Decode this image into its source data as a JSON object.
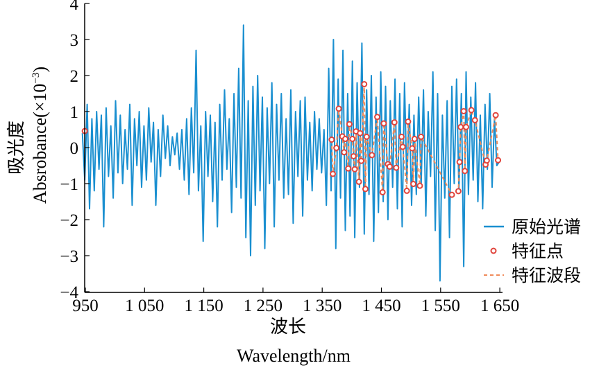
{
  "chart_data": {
    "type": "line",
    "xlabel_cn": "波长",
    "xlabel": "Wavelength/nm",
    "ylabel_cn": "吸光度",
    "ylabel": "Absrobance(×10",
    "ylabel_exp": "−3",
    "ylabel_close": ")",
    "xlim": [
      942,
      1655
    ],
    "ylim": [
      -4,
      4
    ],
    "xticks": [
      950,
      1050,
      1150,
      1250,
      1350,
      1450,
      1550,
      1650
    ],
    "xtick_labels": [
      "950",
      "1 050",
      "1 150",
      "1 250",
      "1 350",
      "1 450",
      "1 550",
      "1 650"
    ],
    "yticks": [
      -4,
      -3,
      -2,
      -1,
      0,
      1,
      2,
      3,
      4
    ],
    "ytick_labels": [
      "−4",
      "−3",
      "−2",
      "−1",
      "0",
      "1",
      "2",
      "3",
      "4"
    ],
    "grid": false,
    "legend_position": "bottom-right",
    "legend": [
      "原始光谱",
      "特征点",
      "特征波段"
    ],
    "colors": {
      "spectrum": "#1a8fd0",
      "points": "#e0443c",
      "bands": "#f08a5a"
    },
    "series": [
      {
        "name": "原始光谱",
        "x_start": 945,
        "x_step": 4,
        "values": [
          0.4,
          -0.9,
          1.2,
          -1.7,
          0.8,
          -1.2,
          1.0,
          -0.6,
          0.9,
          -2.2,
          1.1,
          -0.8,
          0.6,
          -1.4,
          1.3,
          -0.7,
          0.9,
          -1.0,
          0.5,
          -0.6,
          1.2,
          -1.6,
          0.8,
          -0.5,
          1.0,
          -1.1,
          0.6,
          -0.9,
          1.1,
          -0.4,
          0.7,
          -1.6,
          0.5,
          -0.8,
          0.9,
          -0.3,
          0.6,
          -0.5,
          0.3,
          -0.2,
          0.4,
          -0.6,
          0.5,
          -0.9,
          0.8,
          -1.3,
          1.1,
          -0.7,
          2.7,
          -1.2,
          0.6,
          -2.6,
          1.0,
          -0.8,
          0.9,
          -1.5,
          0.7,
          -2.2,
          1.2,
          -0.9,
          1.6,
          -0.6,
          0.8,
          -1.8,
          1.5,
          -1.1,
          2.2,
          -1.4,
          3.4,
          -2.5,
          1.3,
          -3.0,
          1.7,
          -1.6,
          2.0,
          -1.2,
          1.4,
          -2.8,
          1.1,
          -1.0,
          1.8,
          -2.2,
          1.2,
          -0.9,
          1.5,
          -1.4,
          0.8,
          -1.3,
          1.6,
          -2.1,
          1.0,
          -0.8,
          1.3,
          -1.9,
          1.4,
          -0.9,
          0.7,
          -1.2,
          1.0,
          -0.6,
          0.8,
          -0.7,
          0.5,
          -1.6,
          2.2,
          -1.2,
          3.0,
          -2.8,
          1.9,
          -1.4,
          2.7,
          -2.3,
          1.5,
          -1.9,
          2.4,
          -2.5,
          1.8,
          -1.1,
          2.9,
          -2.4,
          1.6,
          -1.3,
          2.0,
          -2.6,
          1.4,
          -1.8,
          2.1,
          -1.5,
          1.7,
          -2.0,
          1.3,
          -1.1,
          1.9,
          -1.7,
          1.5,
          -2.2,
          1.8,
          -1.0,
          1.2,
          -1.6,
          0.9,
          -1.3,
          1.4,
          -1.1,
          1.6,
          -1.9,
          1.0,
          -0.8,
          2.1,
          -2.3,
          1.5,
          -3.7,
          0.9,
          -1.4,
          1.3,
          -2.5,
          1.7,
          -1.0,
          1.9,
          -1.2,
          1.5,
          -3.3,
          2.1,
          -1.3,
          1.4,
          -0.9,
          1.8,
          -1.5,
          0.9,
          -1.7,
          1.2,
          -0.6,
          1.5,
          -1.1,
          0.8,
          -0.5,
          -0.4
        ]
      },
      {
        "name": "特征点",
        "x": [
          949,
          1366,
          1368,
          1374,
          1378,
          1384,
          1387,
          1389,
          1394,
          1396,
          1401,
          1403,
          1405,
          1407,
          1412,
          1414,
          1416,
          1421,
          1423,
          1425,
          1434,
          1443,
          1452,
          1454,
          1461,
          1464,
          1472,
          1475,
          1484,
          1486,
          1493,
          1495,
          1502,
          1504,
          1506,
          1515,
          1517,
          1569,
          1580,
          1582,
          1584,
          1589,
          1591,
          1593,
          1602,
          1608,
          1626,
          1628,
          1643,
          1647
        ],
        "y": [
          0.46,
          0.22,
          -0.73,
          -0.01,
          1.08,
          0.31,
          -0.13,
          0.24,
          -0.58,
          0.65,
          0.24,
          -0.24,
          -0.6,
          0.45,
          -0.95,
          0.4,
          -0.37,
          1.76,
          -1.15,
          0.3,
          -0.21,
          0.85,
          -1.24,
          0.67,
          -0.46,
          -0.53,
          0.7,
          -0.56,
          0.3,
          0.02,
          -1.2,
          0.72,
          -0.02,
          -1.01,
          0.24,
          -1.06,
          0.3,
          -1.31,
          -1.21,
          -0.4,
          0.57,
          1.01,
          -0.65,
          0.57,
          1.04,
          0.76,
          -0.47,
          -0.36,
          0.9,
          -0.35
        ]
      }
    ]
  }
}
